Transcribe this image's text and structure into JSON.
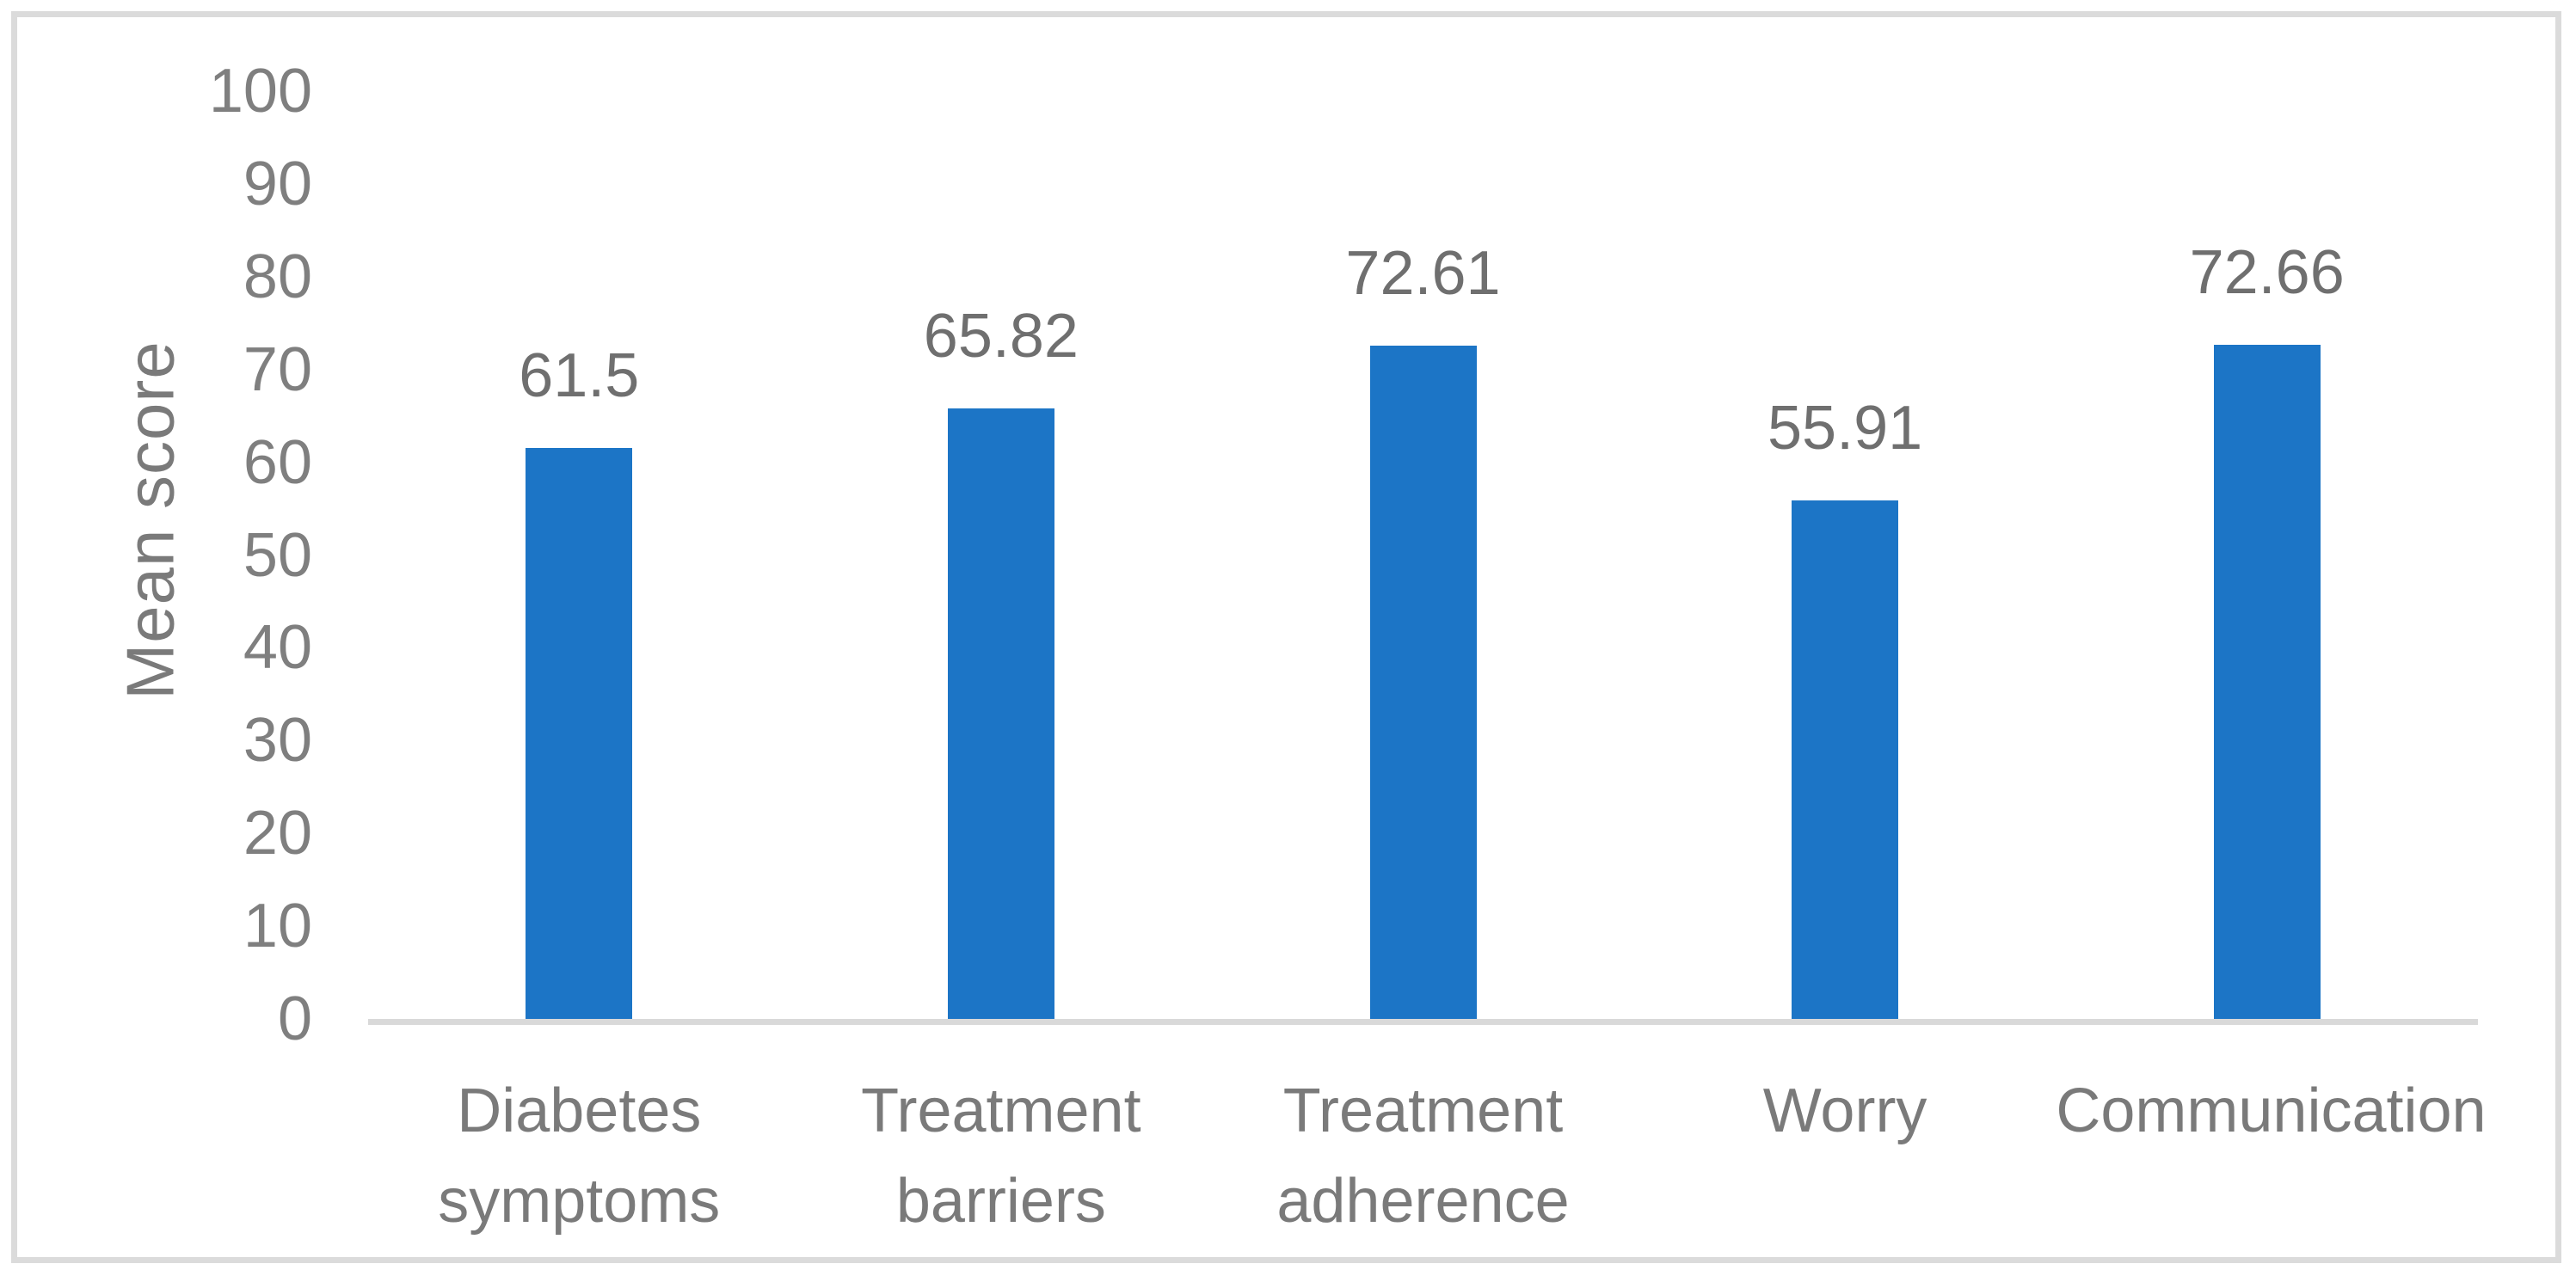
{
  "chart_data": {
    "type": "bar",
    "categories": [
      "Diabetes symptoms",
      "Treatment barriers",
      "Treatment adherence",
      "Worry",
      "Communication"
    ],
    "values": [
      61.5,
      65.82,
      72.61,
      55.91,
      72.66
    ],
    "value_labels": [
      "61.5",
      "65.82",
      "72.61",
      "55.91",
      "72.66"
    ],
    "title": "",
    "xlabel": "",
    "ylabel": "Mean score",
    "ylim": [
      0,
      100
    ],
    "yticks": [
      0,
      10,
      20,
      30,
      40,
      50,
      60,
      70,
      80,
      90,
      100
    ],
    "grid": false,
    "legend": false,
    "bar_color": "#1C75C6",
    "tick_label_color": "#7F7F7F",
    "value_label_color": "#6F6F6F",
    "axis_color": "#D9D9D9",
    "frame_color": "#DBDBDB"
  }
}
